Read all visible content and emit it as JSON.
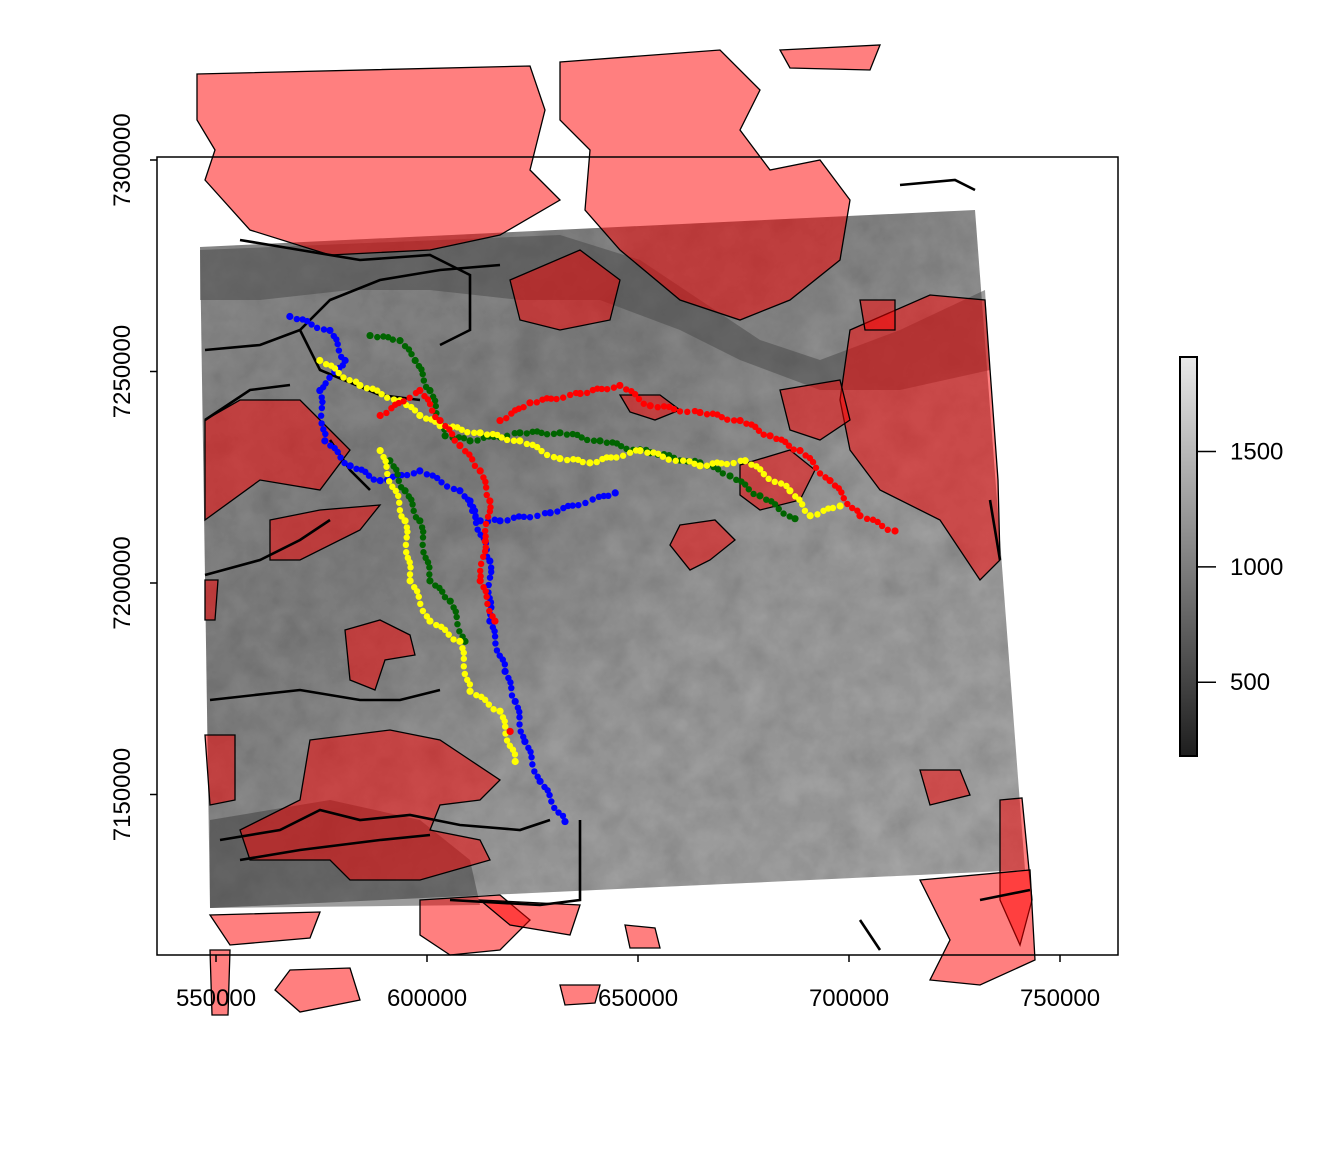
{
  "chart_data": {
    "type": "scatter",
    "map_type": "raster elevation with polygon overlay and point tracks",
    "xlim": [
      537500,
      765000
    ],
    "ylim": [
      7110000,
      7300700
    ],
    "x_ticks": [
      550000,
      600000,
      650000,
      700000,
      750000
    ],
    "x_tick_labels": [
      "550000",
      "600000",
      "650000",
      "700000",
      "750000"
    ],
    "y_ticks": [
      7150000,
      7200000,
      7250000,
      7300000
    ],
    "y_tick_labels": [
      "7150000",
      "7200000",
      "7250000",
      "7300000"
    ],
    "raster_legend": {
      "range": [
        180,
        1910
      ],
      "ticks": [
        500,
        1000,
        1500
      ],
      "tick_labels": [
        "500",
        "1000",
        "1500"
      ],
      "low_color": "#1e1e1e",
      "high_color": "#e8e8e8",
      "placement": "right"
    },
    "polygon_fill": "#ff0000",
    "polygon_alpha": 0.5,
    "roads_color": "#000000",
    "tracks": [
      {
        "color": "#0000ff",
        "segments": [
          [
            [
              567500,
              7263000
            ],
            [
              577000,
              7259700
            ],
            [
              580600,
              7252600
            ],
            [
              574600,
              7245500
            ],
            [
              575800,
              7233600
            ],
            [
              581800,
              7227700
            ],
            [
              588900,
              7224200
            ],
            [
              598300,
              7226500
            ],
            [
              607800,
              7221800
            ],
            [
              612600,
              7214700
            ],
            [
              617300,
              7214700
            ],
            [
              629200,
              7216600
            ],
            [
              644600,
              7221300
            ]
          ],
          [
            [
              610200,
              7219400
            ],
            [
              614900,
              7205200
            ],
            [
              614900,
              7191000
            ],
            [
              618500,
              7179100
            ],
            [
              620900,
              7172000
            ],
            [
              623200,
              7162500
            ],
            [
              626800,
              7153100
            ],
            [
              632700,
              7143600
            ]
          ]
        ]
      },
      {
        "color": "#006400",
        "segments": [
          [
            [
              586500,
              7258500
            ],
            [
              593600,
              7257300
            ],
            [
              597200,
              7252600
            ],
            [
              600700,
              7245500
            ],
            [
              604300,
              7234800
            ],
            [
              610200,
              7233600
            ],
            [
              622000,
              7235500
            ],
            [
              631500,
              7235500
            ],
            [
              641000,
              7233600
            ],
            [
              652900,
              7230800
            ],
            [
              664700,
              7228400
            ],
            [
              671800,
              7225300
            ],
            [
              678900,
              7220600
            ],
            [
              687200,
              7215200
            ]
          ],
          [
            [
              591200,
              7228900
            ],
            [
              594800,
              7221800
            ],
            [
              598300,
              7214700
            ],
            [
              600700,
              7200500
            ],
            [
              605500,
              7195700
            ],
            [
              609000,
              7186200
            ]
          ]
        ]
      },
      {
        "color": "#ffff00",
        "segments": [
          [
            [
              574600,
              7252600
            ],
            [
              584100,
              7246700
            ],
            [
              593600,
              7243100
            ],
            [
              598300,
              7239600
            ],
            [
              603100,
              7237200
            ],
            [
              612600,
              7235500
            ],
            [
              622000,
              7233600
            ],
            [
              631500,
              7229400
            ],
            [
              638600,
              7228400
            ],
            [
              650500,
              7231300
            ],
            [
              664700,
              7227700
            ],
            [
              675400,
              7228900
            ],
            [
              686000,
              7221800
            ],
            [
              690800,
              7215900
            ],
            [
              697900,
              7218200
            ]
          ],
          [
            [
              588900,
              7231300
            ],
            [
              594800,
              7214700
            ],
            [
              596000,
              7200500
            ],
            [
              600700,
              7191000
            ],
            [
              607800,
              7186200
            ],
            [
              610200,
              7174400
            ],
            [
              617300,
              7169700
            ],
            [
              620900,
              7157800
            ]
          ]
        ]
      },
      {
        "color": "#ff0000",
        "segments": [
          [
            [
              588900,
              7239600
            ],
            [
              598300,
              7245500
            ],
            [
              603100,
              7238400
            ],
            [
              607800,
              7232500
            ],
            [
              612600,
              7226500
            ],
            [
              614900,
              7219400
            ],
            [
              613800,
              7209900
            ],
            [
              612600,
              7200500
            ],
            [
              616100,
              7191000
            ]
          ],
          [
            [
              617300,
              7238400
            ],
            [
              624400,
              7242600
            ],
            [
              636300,
              7244800
            ],
            [
              645700,
              7246700
            ],
            [
              652900,
              7241900
            ],
            [
              664700,
              7240300
            ],
            [
              674200,
              7238400
            ],
            [
              681300,
              7234800
            ],
            [
              688400,
              7231300
            ],
            [
              695500,
              7224200
            ],
            [
              702600,
              7215900
            ],
            [
              710900,
              7212300
            ]
          ],
          [
            [
              619700,
              7164900
            ]
          ]
        ]
      }
    ]
  }
}
